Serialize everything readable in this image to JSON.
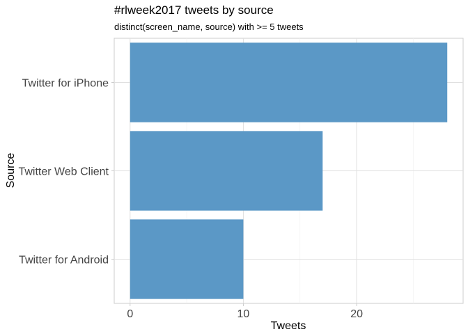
{
  "chart_data": {
    "type": "bar",
    "orientation": "horizontal",
    "title": "#rlweek2017 tweets by source",
    "subtitle": "distinct(screen_name, source) with >= 5 tweets",
    "xlabel": "Tweets",
    "ylabel": "Source",
    "categories": [
      "Twitter for iPhone",
      "Twitter Web Client",
      "Twitter for Android"
    ],
    "values": [
      28,
      17,
      10
    ],
    "xlim": [
      -1.4,
      29.4
    ],
    "xticks": [
      0,
      10,
      20
    ],
    "bar_color": "#5b98c6",
    "grid": true
  }
}
